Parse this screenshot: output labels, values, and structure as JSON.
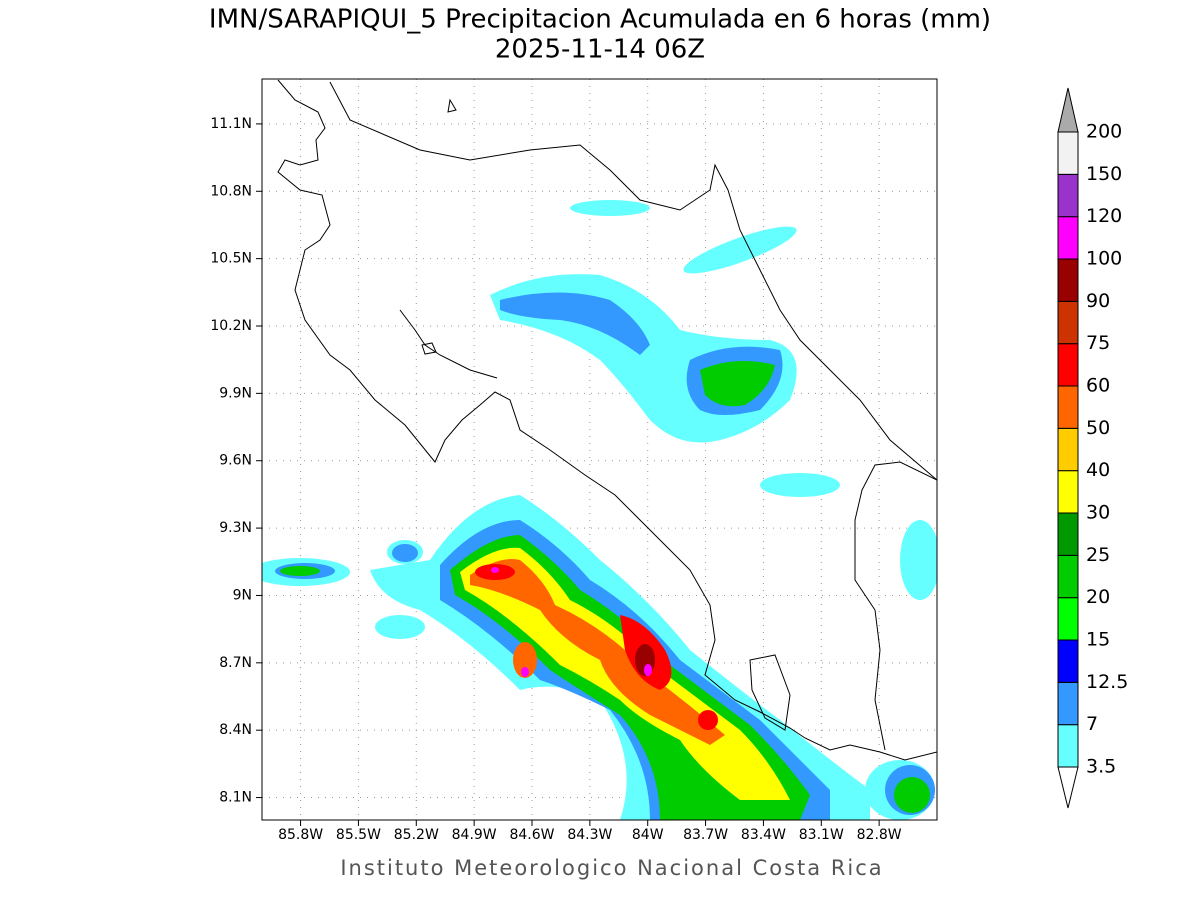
{
  "title": "IMN/SARAPIQUI_5 Precipitacion Acumulada en 6 horas (mm)",
  "subtitle": "2025-11-14 06Z",
  "footer": "Instituto Meteorologico Nacional Costa Rica",
  "map": {
    "xlim": [
      -86.0,
      -82.5
    ],
    "ylim": [
      8.0,
      11.3
    ],
    "grid": true,
    "xticks": [
      {
        "value": -85.8,
        "label": "85.8W"
      },
      {
        "value": -85.5,
        "label": "85.5W"
      },
      {
        "value": -85.2,
        "label": "85.2W"
      },
      {
        "value": -84.9,
        "label": "84.9W"
      },
      {
        "value": -84.6,
        "label": "84.6W"
      },
      {
        "value": -84.3,
        "label": "84.3W"
      },
      {
        "value": -84.0,
        "label": "84W"
      },
      {
        "value": -83.7,
        "label": "83.7W"
      },
      {
        "value": -83.4,
        "label": "83.4W"
      },
      {
        "value": -83.1,
        "label": "83.1W"
      },
      {
        "value": -82.8,
        "label": "82.8W"
      }
    ],
    "yticks": [
      {
        "value": 8.1,
        "label": "8.1N"
      },
      {
        "value": 8.4,
        "label": "8.4N"
      },
      {
        "value": 8.7,
        "label": "8.7N"
      },
      {
        "value": 9.0,
        "label": "9N"
      },
      {
        "value": 9.3,
        "label": "9.3N"
      },
      {
        "value": 9.6,
        "label": "9.6N"
      },
      {
        "value": 9.9,
        "label": "9.9N"
      },
      {
        "value": 10.2,
        "label": "10.2N"
      },
      {
        "value": 10.5,
        "label": "10.5N"
      },
      {
        "value": 10.8,
        "label": "10.8N"
      },
      {
        "value": 11.1,
        "label": "11.1N"
      }
    ]
  },
  "colorbar": {
    "levels": [
      3.5,
      7,
      12.5,
      15,
      20,
      25,
      30,
      40,
      50,
      60,
      75,
      90,
      100,
      120,
      150,
      200
    ],
    "colors": [
      "#66ffff",
      "#3399ff",
      "#0000ff",
      "#00ff00",
      "#00cc00",
      "#009900",
      "#ffff00",
      "#ffcc00",
      "#ff6600",
      "#ff0000",
      "#cc3300",
      "#990000",
      "#ff00ff",
      "#9933cc",
      "#f2f2f2"
    ],
    "over_color": "#aaaaaa",
    "under_color": "#ffffff"
  }
}
